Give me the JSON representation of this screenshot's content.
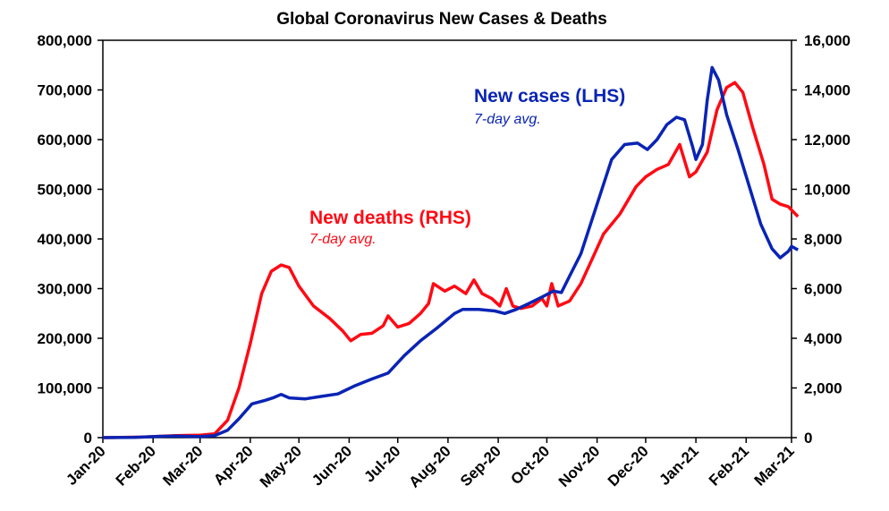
{
  "chart_data": {
    "type": "line",
    "title": "Global Coronavirus New Cases & Deaths",
    "x_ticks": [
      "Jan-20",
      "Feb-20",
      "Mar-20",
      "Apr-20",
      "May-20",
      "Jun-20",
      "Jul-20",
      "Aug-20",
      "Sep-20",
      "Oct-20",
      "Nov-20",
      "Dec-20",
      "Jan-21",
      "Feb-21",
      "Mar-21"
    ],
    "y_left": {
      "min": 0,
      "max": 800000,
      "ticks": [
        "0",
        "100,000",
        "200,000",
        "300,000",
        "400,000",
        "500,000",
        "600,000",
        "700,000",
        "800,000"
      ]
    },
    "y_right": {
      "min": 0,
      "max": 16000,
      "ticks": [
        "0",
        "2,000",
        "4,000",
        "6,000",
        "8,000",
        "10,000",
        "12,000",
        "14,000",
        "16,000"
      ]
    },
    "legend": "annotations in plot area",
    "colors": {
      "cases": "#0a24b4",
      "deaths": "#ff0a14"
    },
    "annotations": {
      "cases_label": "New cases (LHS)",
      "cases_sub": "7-day avg.",
      "deaths_label": "New deaths (RHS)",
      "deaths_sub": "7-day avg."
    },
    "series": [
      {
        "name": "New cases (LHS)",
        "axis": "left",
        "points": [
          [
            "2020-01-01",
            0
          ],
          [
            "2020-01-20",
            500
          ],
          [
            "2020-02-05",
            2500
          ],
          [
            "2020-02-15",
            3000
          ],
          [
            "2020-03-01",
            2000
          ],
          [
            "2020-03-10",
            4000
          ],
          [
            "2020-03-18",
            15000
          ],
          [
            "2020-03-25",
            38000
          ],
          [
            "2020-04-02",
            68000
          ],
          [
            "2020-04-10",
            75000
          ],
          [
            "2020-04-15",
            80000
          ],
          [
            "2020-04-20",
            87000
          ],
          [
            "2020-04-25",
            80000
          ],
          [
            "2020-05-05",
            78000
          ],
          [
            "2020-05-15",
            83000
          ],
          [
            "2020-05-25",
            88000
          ],
          [
            "2020-06-05",
            105000
          ],
          [
            "2020-06-15",
            118000
          ],
          [
            "2020-06-25",
            130000
          ],
          [
            "2020-07-05",
            165000
          ],
          [
            "2020-07-15",
            195000
          ],
          [
            "2020-07-25",
            220000
          ],
          [
            "2020-08-05",
            250000
          ],
          [
            "2020-08-10",
            258000
          ],
          [
            "2020-08-20",
            258000
          ],
          [
            "2020-08-30",
            255000
          ],
          [
            "2020-09-05",
            250000
          ],
          [
            "2020-09-12",
            258000
          ],
          [
            "2020-09-20",
            270000
          ],
          [
            "2020-09-28",
            283000
          ],
          [
            "2020-10-05",
            295000
          ],
          [
            "2020-10-10",
            292000
          ],
          [
            "2020-10-15",
            325000
          ],
          [
            "2020-10-22",
            370000
          ],
          [
            "2020-10-28",
            430000
          ],
          [
            "2020-11-05",
            510000
          ],
          [
            "2020-11-10",
            560000
          ],
          [
            "2020-11-18",
            590000
          ],
          [
            "2020-11-26",
            593000
          ],
          [
            "2020-12-02",
            580000
          ],
          [
            "2020-12-08",
            600000
          ],
          [
            "2020-12-14",
            630000
          ],
          [
            "2020-12-20",
            645000
          ],
          [
            "2020-12-25",
            640000
          ],
          [
            "2020-12-30",
            585000
          ],
          [
            "2021-01-01",
            560000
          ],
          [
            "2021-01-05",
            590000
          ],
          [
            "2021-01-08",
            680000
          ],
          [
            "2021-01-11",
            745000
          ],
          [
            "2021-01-15",
            720000
          ],
          [
            "2021-01-20",
            650000
          ],
          [
            "2021-01-27",
            580000
          ],
          [
            "2021-02-03",
            505000
          ],
          [
            "2021-02-10",
            430000
          ],
          [
            "2021-02-17",
            380000
          ],
          [
            "2021-02-22",
            362000
          ],
          [
            "2021-02-27",
            375000
          ],
          [
            "2021-03-01",
            385000
          ],
          [
            "2021-03-05",
            378000
          ]
        ]
      },
      {
        "name": "New deaths (RHS)",
        "axis": "right",
        "points": [
          [
            "2020-01-01",
            0
          ],
          [
            "2020-01-25",
            20
          ],
          [
            "2020-02-15",
            80
          ],
          [
            "2020-03-01",
            100
          ],
          [
            "2020-03-10",
            150
          ],
          [
            "2020-03-18",
            700
          ],
          [
            "2020-03-25",
            2000
          ],
          [
            "2020-04-01",
            3800
          ],
          [
            "2020-04-08",
            5800
          ],
          [
            "2020-04-14",
            6700
          ],
          [
            "2020-04-20",
            6950
          ],
          [
            "2020-04-25",
            6850
          ],
          [
            "2020-05-01",
            6100
          ],
          [
            "2020-05-10",
            5300
          ],
          [
            "2020-05-20",
            4800
          ],
          [
            "2020-05-28",
            4300
          ],
          [
            "2020-06-02",
            3900
          ],
          [
            "2020-06-08",
            4150
          ],
          [
            "2020-06-15",
            4200
          ],
          [
            "2020-06-22",
            4500
          ],
          [
            "2020-06-25",
            4900
          ],
          [
            "2020-07-01",
            4450
          ],
          [
            "2020-07-08",
            4600
          ],
          [
            "2020-07-15",
            5000
          ],
          [
            "2020-07-20",
            5400
          ],
          [
            "2020-07-23",
            6200
          ],
          [
            "2020-07-30",
            5900
          ],
          [
            "2020-08-05",
            6100
          ],
          [
            "2020-08-12",
            5800
          ],
          [
            "2020-08-17",
            6350
          ],
          [
            "2020-08-22",
            5800
          ],
          [
            "2020-08-28",
            5600
          ],
          [
            "2020-09-02",
            5300
          ],
          [
            "2020-09-06",
            6000
          ],
          [
            "2020-09-10",
            5300
          ],
          [
            "2020-09-15",
            5200
          ],
          [
            "2020-09-22",
            5300
          ],
          [
            "2020-09-28",
            5600
          ],
          [
            "2020-10-01",
            5300
          ],
          [
            "2020-10-04",
            6200
          ],
          [
            "2020-10-08",
            5300
          ],
          [
            "2020-10-15",
            5500
          ],
          [
            "2020-10-22",
            6200
          ],
          [
            "2020-10-29",
            7200
          ],
          [
            "2020-11-05",
            8200
          ],
          [
            "2020-11-15",
            9000
          ],
          [
            "2020-11-25",
            10100
          ],
          [
            "2020-12-01",
            10500
          ],
          [
            "2020-12-08",
            10800
          ],
          [
            "2020-12-15",
            11000
          ],
          [
            "2020-12-22",
            11800
          ],
          [
            "2020-12-28",
            10500
          ],
          [
            "2021-01-01",
            10700
          ],
          [
            "2021-01-08",
            11500
          ],
          [
            "2021-01-14",
            13200
          ],
          [
            "2021-01-20",
            14100
          ],
          [
            "2021-01-25",
            14300
          ],
          [
            "2021-01-30",
            13900
          ],
          [
            "2021-02-05",
            12500
          ],
          [
            "2021-02-12",
            11000
          ],
          [
            "2021-02-17",
            9600
          ],
          [
            "2021-02-22",
            9400
          ],
          [
            "2021-02-27",
            9300
          ],
          [
            "2021-03-05",
            8900
          ]
        ]
      }
    ]
  }
}
